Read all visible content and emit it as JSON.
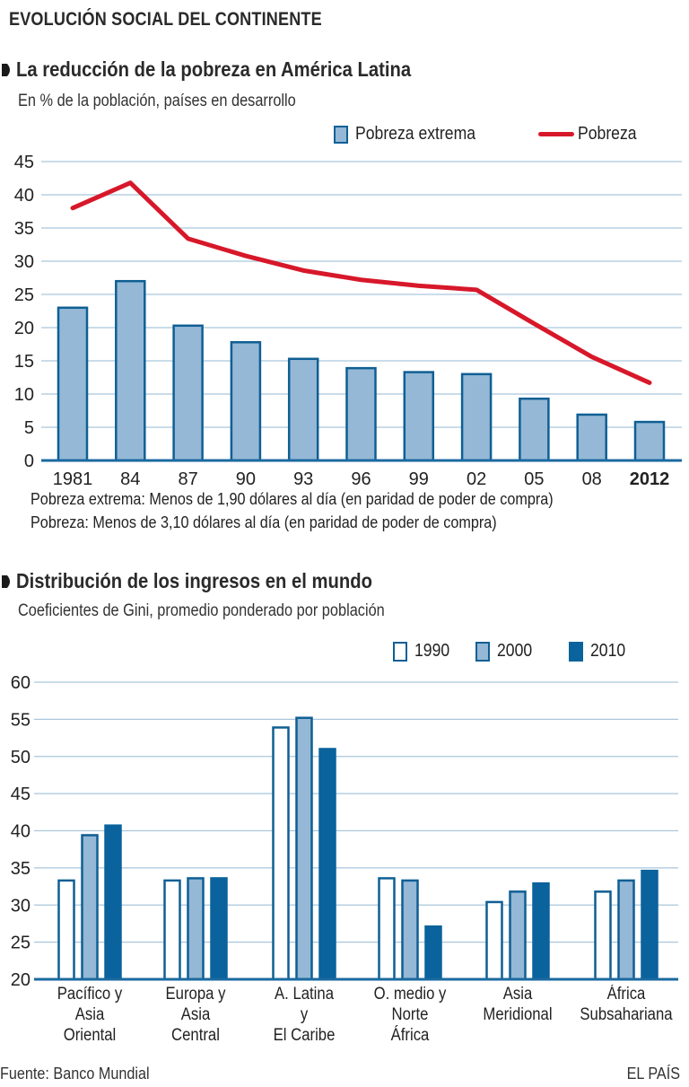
{
  "header": {
    "title": "EVOLUCIÓN SOCIAL DEL CONTINENTE"
  },
  "colors": {
    "bar_fill": "#94b8d6",
    "bar_stroke": "#0f5f94",
    "line": "#d7182a",
    "grid": "#a9c6dc",
    "axis": "#1b6aa0",
    "dark_bar": "#0a639c"
  },
  "chart_data": [
    {
      "type": "bar",
      "title": "La reducción de la pobreza en América Latina",
      "subtitle": "En % de la población, países en desarrollo",
      "xlabel": "",
      "ylabel": "",
      "ylim": [
        0,
        45
      ],
      "yticks": [
        0,
        5,
        10,
        15,
        20,
        25,
        30,
        35,
        40,
        45
      ],
      "grid": true,
      "legend_position": "top-right",
      "categories": [
        "1981",
        "84",
        "87",
        "90",
        "93",
        "96",
        "99",
        "02",
        "05",
        "08",
        "2012"
      ],
      "bold_categories": [
        "2012"
      ],
      "series": [
        {
          "name": "Pobreza extrema",
          "kind": "bar",
          "values": [
            23.0,
            27.0,
            20.3,
            17.8,
            15.3,
            13.9,
            13.3,
            13.0,
            9.3,
            6.9,
            5.8
          ]
        },
        {
          "name": "Pobreza",
          "kind": "line",
          "values": [
            38.0,
            41.8,
            33.4,
            30.8,
            28.6,
            27.2,
            26.3,
            25.7,
            20.6,
            15.6,
            11.7
          ]
        }
      ],
      "notes": [
        "Pobreza extrema: Menos de 1,90 dólares al día (en paridad de poder de compra)",
        "Pobreza: Menos de 3,10 dólares al día (en paridad de poder de compra)"
      ]
    },
    {
      "type": "bar",
      "title": "Distribución de los ingresos en el mundo",
      "subtitle": "Coeficientes de Gini, promedio ponderado por población",
      "xlabel": "",
      "ylabel": "",
      "ylim": [
        20,
        60
      ],
      "yticks": [
        20,
        25,
        30,
        35,
        40,
        45,
        50,
        55,
        60
      ],
      "grid": true,
      "legend_position": "top-right",
      "categories": [
        "Pacífico y\nAsia\nOriental",
        "Europa y\nAsia\nCentral",
        "A. Latina\ny\nEl Caribe",
        "O. medio y\nNorte\nÁfrica",
        "Asia\nMeridional",
        "África\nSubsahariana"
      ],
      "series": [
        {
          "name": "1990",
          "values": [
            33.3,
            33.3,
            53.9,
            33.6,
            30.4,
            31.8
          ]
        },
        {
          "name": "2000",
          "values": [
            39.4,
            33.6,
            55.2,
            33.3,
            31.8,
            33.3
          ]
        },
        {
          "name": "2010",
          "values": [
            40.7,
            33.6,
            51.0,
            27.1,
            32.9,
            34.6
          ]
        }
      ]
    }
  ],
  "footer": {
    "source": "Fuente:  Banco Mundial",
    "brand": "EL PAÍS"
  }
}
